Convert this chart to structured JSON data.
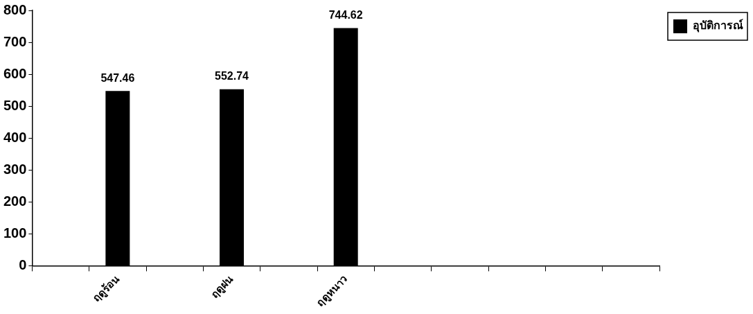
{
  "chart_data": {
    "type": "bar",
    "categories": [
      null,
      "ฤดูร้อน",
      null,
      "ฤดูฝน",
      null,
      "ฤดูหนาว",
      null,
      null,
      null,
      null,
      null
    ],
    "series": [
      {
        "name": "อุบัติการณ์",
        "color": "#000000",
        "values": [
          null,
          547.46,
          null,
          552.74,
          null,
          744.62,
          null,
          null,
          null,
          null,
          null
        ]
      }
    ],
    "ylim": [
      0,
      800
    ],
    "yticks": [
      0,
      100,
      200,
      300,
      400,
      500,
      600,
      700,
      800
    ],
    "grid": false,
    "legend": "right",
    "data_labels": true
  }
}
